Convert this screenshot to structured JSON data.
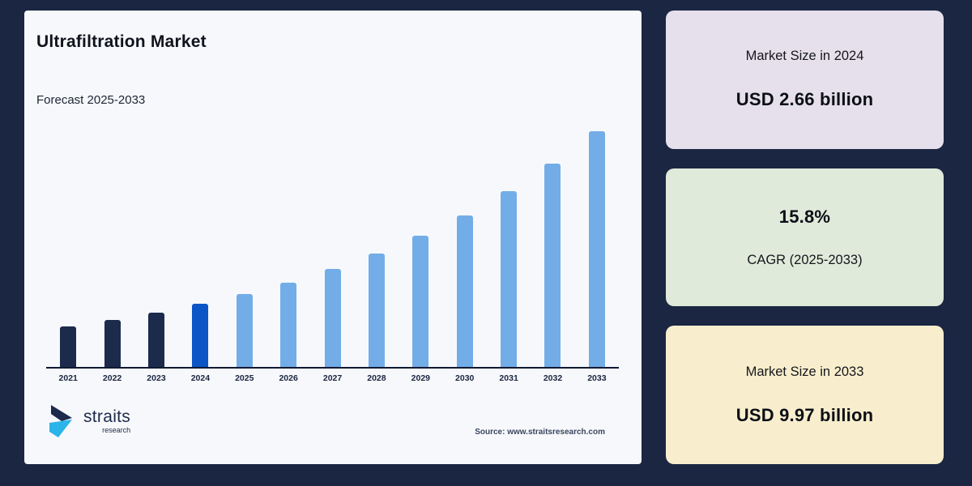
{
  "page": {
    "background": "#1b2642"
  },
  "chart_panel": {
    "title": "Ultrafiltration Market",
    "subtitle": "Forecast 2025-2033",
    "background": "#f7f8fb"
  },
  "chart_data": {
    "type": "bar",
    "title": "Ultrafiltration Market",
    "subtitle": "Forecast 2025-2033",
    "unit": "USD billion",
    "categories": [
      "2021",
      "2022",
      "2023",
      "2024",
      "2025",
      "2026",
      "2027",
      "2028",
      "2029",
      "2030",
      "2031",
      "2032",
      "2033"
    ],
    "values": [
      1.71,
      1.98,
      2.3,
      2.66,
      3.08,
      3.57,
      4.13,
      4.78,
      5.54,
      6.41,
      7.43,
      8.6,
      9.97
    ],
    "colors": [
      "#1c2a4c",
      "#1c2a4c",
      "#1c2a4c",
      "#0b55c6",
      "#72ade8",
      "#72ade8",
      "#72ade8",
      "#72ade8",
      "#72ade8",
      "#72ade8",
      "#72ade8",
      "#72ade8",
      "#72ade8"
    ],
    "color_legend": {
      "historical_2021_2023": "#1c2a4c",
      "base_year_2024": "#0b55c6",
      "forecast_2025_2033": "#72ade8"
    },
    "annotations": {
      "market_size_2024": "USD 2.66 billion",
      "market_size_2033": "USD 9.97 billion",
      "cagr": "15.8%"
    },
    "ylim": [
      0,
      10
    ],
    "grid": false,
    "y_axis_visible": false,
    "legend": false,
    "x_axis_line_color": "#0e1a33"
  },
  "footer": {
    "brand_top": "straits",
    "brand_bottom": "research",
    "source": "Source: www.straitsresearch.com",
    "logo_colors": {
      "dark": "#1c2a4c",
      "cyan": "#2ab4ea"
    }
  },
  "cards": {
    "market_2024": {
      "label": "Market Size in 2024",
      "value": "USD 2.66 billion",
      "background": "#e5e0ec"
    },
    "cagr": {
      "value": "15.8%",
      "label": "CAGR (2025-2033)",
      "background": "#dfeada"
    },
    "market_2033": {
      "label": "Market Size in 2033",
      "value": "USD 9.97 billion",
      "background": "#f8eecd"
    }
  }
}
